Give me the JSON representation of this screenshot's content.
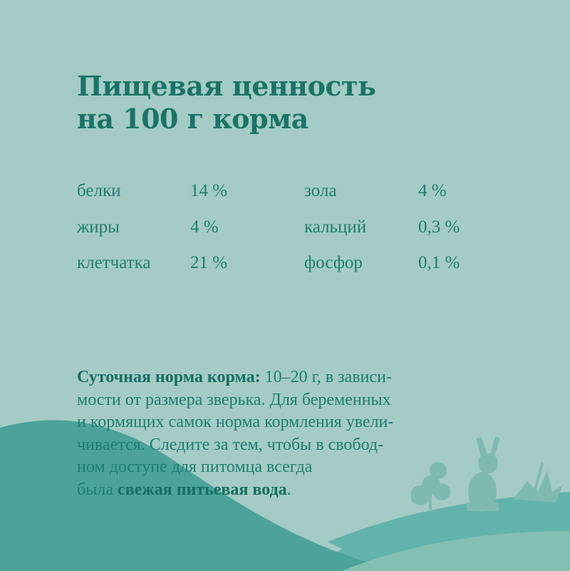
{
  "title": {
    "line1": "Пищевая ценность",
    "line2": "на 100 г корма"
  },
  "nutrition": [
    {
      "name": "белки",
      "value": "14 %"
    },
    {
      "name": "жиры",
      "value": "4 %"
    },
    {
      "name": "клетчатка",
      "value": "21 %"
    },
    {
      "name": "зола",
      "value": "4 %"
    },
    {
      "name": "кальций",
      "value": "0,3 %"
    },
    {
      "name": "фосфор",
      "value": "0,1 %"
    }
  ],
  "description": {
    "bold_lead": "Суточная норма корма:",
    "line1_rest": " 10–20 г, в зависи-",
    "line2": "мости от размера зверька. Для беременных",
    "line3": "и кормящих самок норма кормления увели-",
    "line4": "чивается. Следите за тем, чтобы в свобод-",
    "line5": "ном доступе для питомца всегда",
    "line6_start": "была ",
    "bold_end": "свежая питьевая вода",
    "period": "."
  },
  "colors": {
    "background": "#a4cbc5",
    "text": "#1b7a6f",
    "hill_dark": "#4ba39a",
    "hill_mid": "#62b3ab",
    "hill_light": "#83bfb3"
  },
  "icons": [
    "rabbit-silhouette",
    "tree-silhouette",
    "grass-silhouette"
  ]
}
